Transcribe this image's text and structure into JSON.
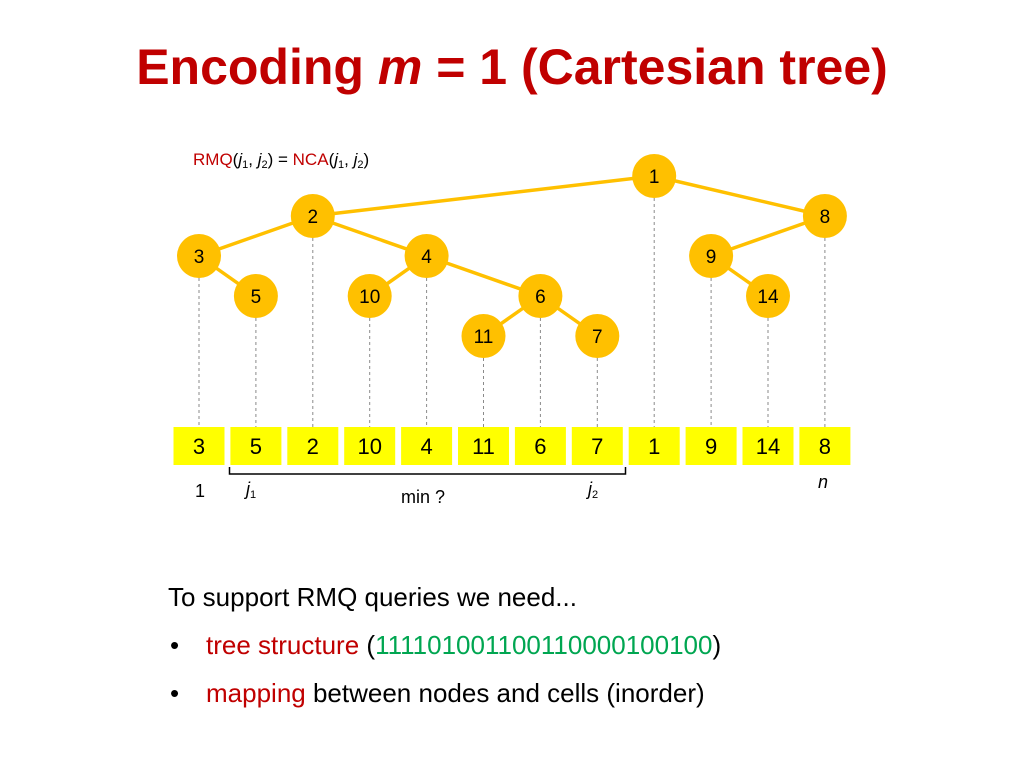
{
  "title": {
    "prefix": "Encoding ",
    "var": "m",
    "suffix": " = 1 (Cartesian tree)"
  },
  "formula": {
    "rmq": "RMQ",
    "open": "(",
    "j": "j",
    "sub1": "1",
    "sep": ", ",
    "sub2": "2",
    "eq": ") = ",
    "nca": "NCA",
    "close": ")"
  },
  "tree": {
    "nodes": [
      {
        "id": "1",
        "depth": 0,
        "index": 8
      },
      {
        "id": "2",
        "depth": 1,
        "index": 2
      },
      {
        "id": "8",
        "depth": 1,
        "index": 11
      },
      {
        "id": "3",
        "depth": 2,
        "index": 0
      },
      {
        "id": "4",
        "depth": 2,
        "index": 4
      },
      {
        "id": "9",
        "depth": 2,
        "index": 9
      },
      {
        "id": "5",
        "depth": 3,
        "index": 1
      },
      {
        "id": "10",
        "depth": 3,
        "index": 3
      },
      {
        "id": "6",
        "depth": 3,
        "index": 6
      },
      {
        "id": "14",
        "depth": 3,
        "index": 10
      },
      {
        "id": "11",
        "depth": 4,
        "index": 5
      },
      {
        "id": "7",
        "depth": 4,
        "index": 7
      }
    ],
    "edges": [
      [
        "1",
        "2"
      ],
      [
        "1",
        "8"
      ],
      [
        "2",
        "3"
      ],
      [
        "2",
        "4"
      ],
      [
        "3",
        "5"
      ],
      [
        "4",
        "10"
      ],
      [
        "4",
        "6"
      ],
      [
        "6",
        "11"
      ],
      [
        "6",
        "7"
      ],
      [
        "8",
        "9"
      ],
      [
        "9",
        "14"
      ]
    ]
  },
  "array": [
    "3",
    "5",
    "2",
    "10",
    "4",
    "11",
    "6",
    "7",
    "1",
    "9",
    "14",
    "8"
  ],
  "labels": {
    "one": "1",
    "j": "j",
    "j1_sub": "1",
    "j2_sub": "2",
    "min": "min ?",
    "n": "n"
  },
  "text": {
    "intro": "To support RMQ queries we need...",
    "bullet": "•",
    "b1_red": "tree structure",
    "b1_open": " (",
    "b1_green": "111101001100110000100100",
    "b1_close": ")",
    "b2_red": "mapping",
    "b2_rest": " between nodes and cells (inorder)"
  },
  "colors": {
    "title": "#c00000",
    "node_fill": "#ffc000",
    "edge": "#ffc000",
    "cell_fill": "#ffff00",
    "highlight_red": "#c00000",
    "highlight_green": "#00a651"
  }
}
